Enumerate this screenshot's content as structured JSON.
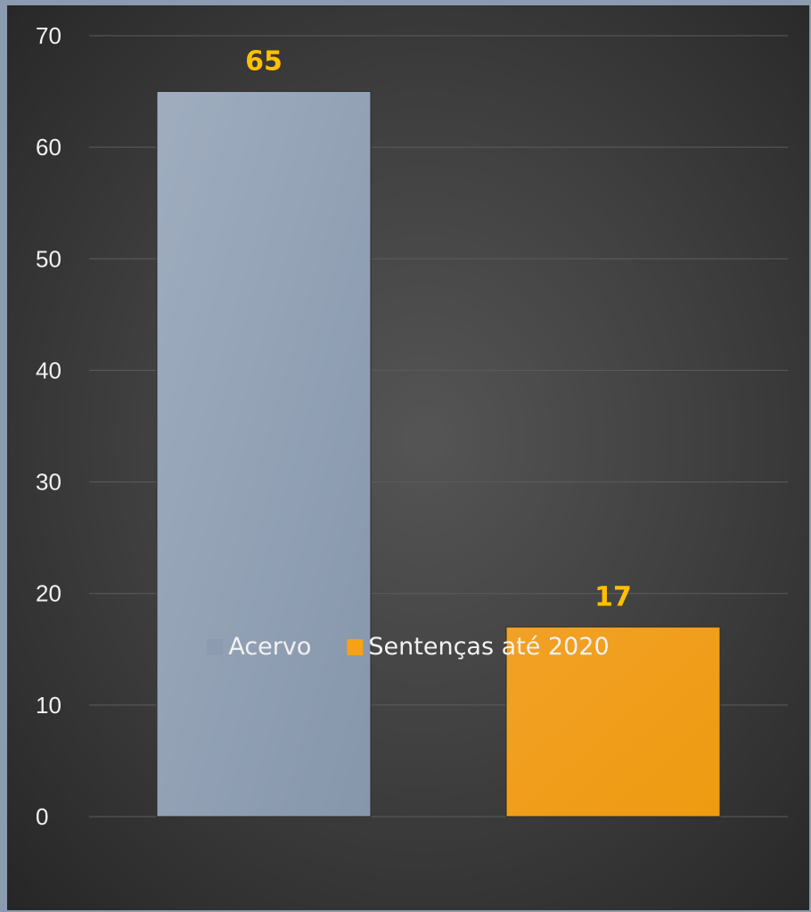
{
  "chart_data": {
    "type": "bar",
    "categories": [
      "Acervo",
      "Sentenças até 2020"
    ],
    "values": [
      65,
      17
    ],
    "value_labels": [
      "65",
      "17"
    ],
    "ylim": [
      0,
      70
    ],
    "yticks": [
      0,
      10,
      20,
      30,
      40,
      50,
      60,
      70
    ],
    "colors": [
      "#8c9bb0",
      "#f5a315"
    ],
    "data_label_color": "#ffc000",
    "grid": true,
    "legend": {
      "position": "bottom",
      "entries": [
        "Acervo",
        "Sentenças até 2020"
      ]
    },
    "title": "",
    "xlabel": "",
    "ylabel": ""
  }
}
